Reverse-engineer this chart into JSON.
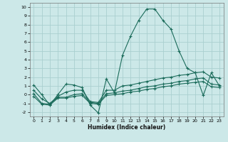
{
  "xlabel": "Humidex (Indice chaleur)",
  "xlim": [
    -0.5,
    23.5
  ],
  "ylim": [
    -2.5,
    10.5
  ],
  "xticks": [
    0,
    1,
    2,
    3,
    4,
    5,
    6,
    7,
    8,
    9,
    10,
    11,
    12,
    13,
    14,
    15,
    16,
    17,
    18,
    19,
    20,
    21,
    22,
    23
  ],
  "yticks": [
    -2,
    -1,
    0,
    1,
    2,
    3,
    4,
    5,
    6,
    7,
    8,
    9,
    10
  ],
  "background_color": "#cce8e8",
  "grid_color": "#aacfcf",
  "line_color": "#1a6b5a",
  "lines": [
    {
      "x": [
        0,
        1,
        2,
        3,
        4,
        5,
        6,
        7,
        8,
        9,
        10,
        11,
        12,
        13,
        14,
        15,
        16,
        17,
        18,
        19,
        20,
        21,
        22,
        23
      ],
      "y": [
        1.1,
        0.0,
        -1.2,
        0.0,
        1.2,
        1.1,
        0.8,
        -1.2,
        -2.1,
        1.8,
        0.2,
        4.5,
        6.7,
        8.5,
        9.8,
        9.8,
        8.5,
        7.5,
        5.0,
        3.0,
        2.5,
        -0.1,
        2.5,
        1.0
      ]
    },
    {
      "x": [
        0,
        1,
        2,
        3,
        4,
        5,
        6,
        7,
        8,
        9,
        10,
        11,
        12,
        13,
        14,
        15,
        16,
        17,
        18,
        19,
        20,
        21,
        22,
        23
      ],
      "y": [
        0.1,
        -1.0,
        -1.1,
        -0.3,
        -0.3,
        0.0,
        0.1,
        -0.9,
        -1.0,
        0.1,
        0.2,
        0.4,
        0.5,
        0.7,
        0.9,
        1.0,
        1.2,
        1.3,
        1.5,
        1.6,
        1.8,
        1.9,
        1.2,
        1.1
      ]
    },
    {
      "x": [
        0,
        1,
        2,
        3,
        4,
        5,
        6,
        7,
        8,
        9,
        10,
        11,
        12,
        13,
        14,
        15,
        16,
        17,
        18,
        19,
        20,
        21,
        22,
        23
      ],
      "y": [
        -0.2,
        -1.1,
        -1.2,
        -0.4,
        -0.4,
        -0.2,
        -0.1,
        -1.0,
        -1.1,
        -0.1,
        0.0,
        0.1,
        0.3,
        0.4,
        0.6,
        0.7,
        0.9,
        1.0,
        1.2,
        1.3,
        1.4,
        1.5,
        0.9,
        0.8
      ]
    },
    {
      "x": [
        0,
        1,
        2,
        3,
        4,
        5,
        6,
        7,
        8,
        9,
        10,
        11,
        12,
        13,
        14,
        15,
        16,
        17,
        18,
        19,
        20,
        21,
        22,
        23
      ],
      "y": [
        0.5,
        -0.5,
        -1.0,
        -0.2,
        0.3,
        0.5,
        0.5,
        -0.8,
        -0.9,
        0.5,
        0.5,
        1.0,
        1.1,
        1.3,
        1.5,
        1.7,
        1.9,
        2.0,
        2.2,
        2.3,
        2.5,
        2.6,
        2.0,
        1.9
      ]
    }
  ]
}
